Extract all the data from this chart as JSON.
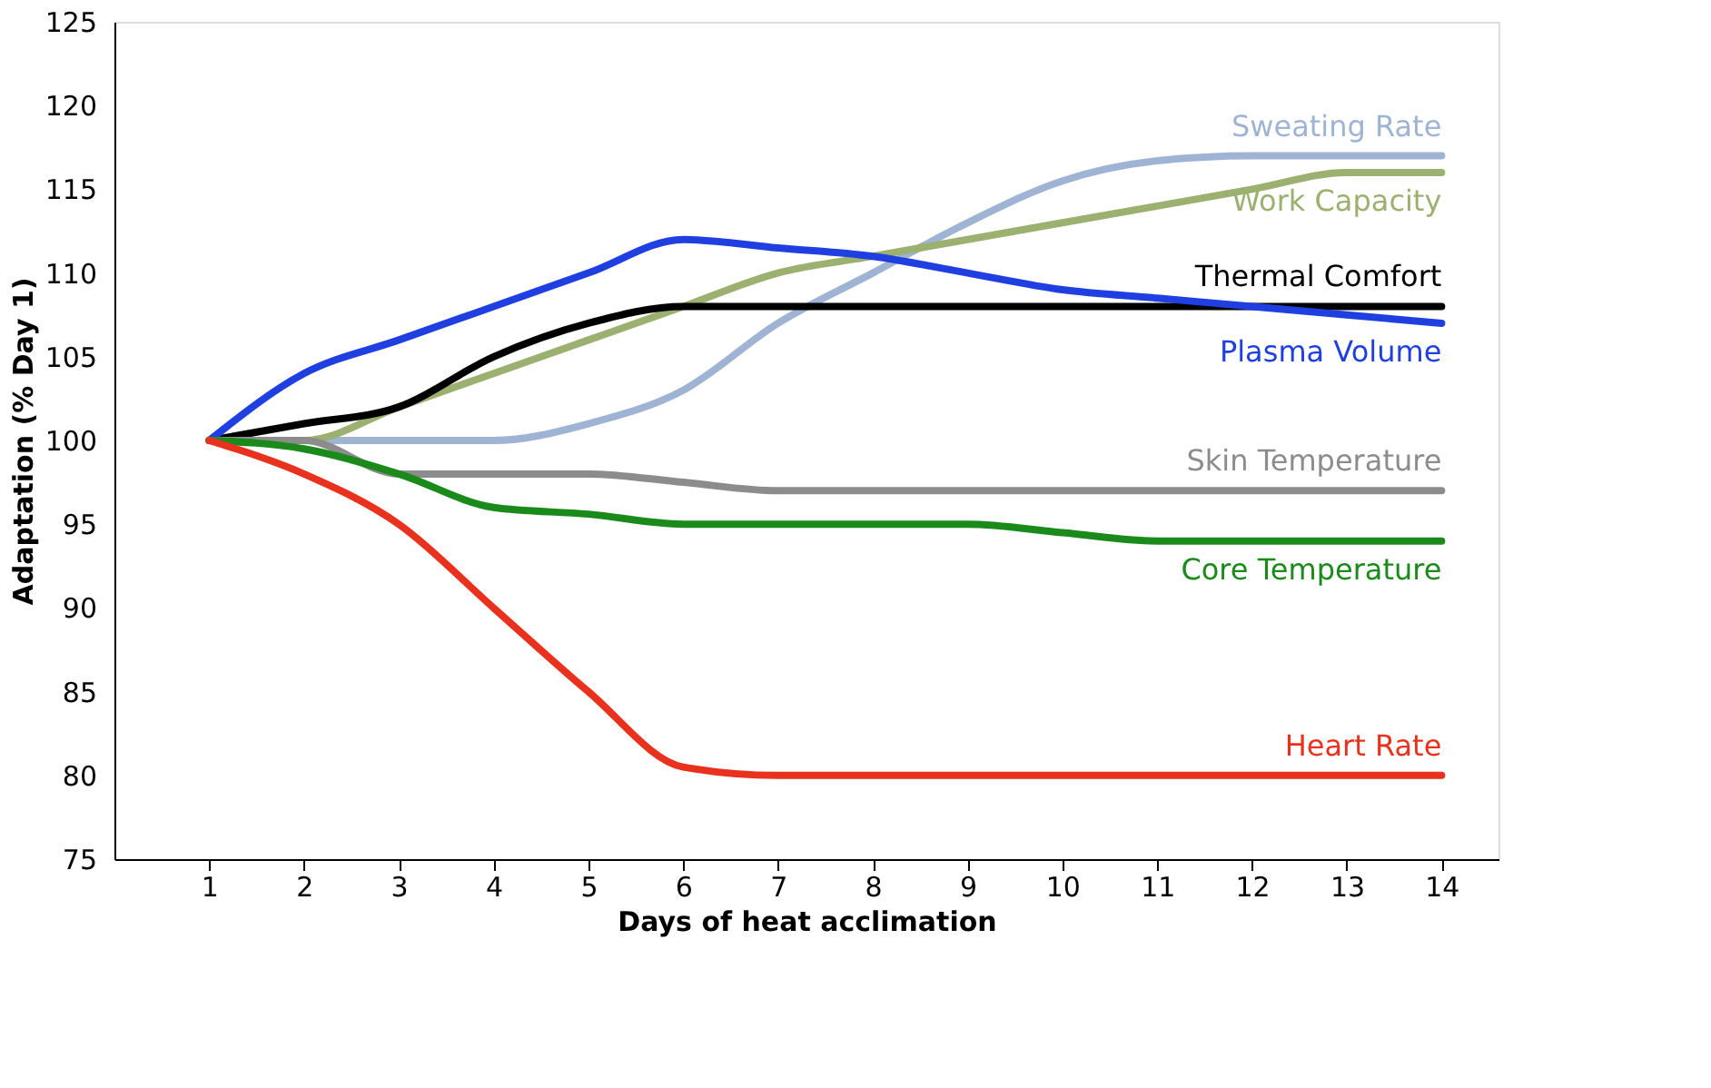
{
  "chart_data": {
    "type": "line",
    "xlabel": "Days of heat acclimation",
    "ylabel": "Adaptation (% Day 1)",
    "x": [
      1,
      2,
      3,
      4,
      5,
      6,
      7,
      8,
      9,
      10,
      11,
      12,
      13,
      14
    ],
    "xlim": [
      0,
      14.6
    ],
    "xticks": [
      1,
      2,
      3,
      4,
      5,
      6,
      7,
      8,
      9,
      10,
      11,
      12,
      13,
      14
    ],
    "ylim": [
      75,
      125
    ],
    "yticks": [
      75,
      80,
      85,
      90,
      95,
      100,
      105,
      110,
      115,
      120,
      125
    ],
    "grid": false,
    "legend": false,
    "marker": "none",
    "line_style": "solid",
    "series": [
      {
        "name": "Sweating Rate",
        "color": "#9fb4d4",
        "values": [
          100,
          100,
          100,
          100,
          101,
          103,
          107,
          110,
          113,
          115.5,
          116.7,
          117,
          117,
          117
        ]
      },
      {
        "name": "Work Capacity",
        "color": "#9cb070",
        "values": [
          100,
          100,
          102,
          104,
          106,
          108,
          110,
          111,
          112,
          113,
          114,
          115,
          116,
          116
        ]
      },
      {
        "name": "Thermal Comfort",
        "color": "#000000",
        "values": [
          100,
          101,
          102,
          105,
          107,
          108,
          108,
          108,
          108,
          108,
          108,
          108,
          108,
          108
        ]
      },
      {
        "name": "Plasma Volume",
        "color": "#1f3fe0",
        "values": [
          100,
          104,
          106,
          108,
          110,
          112,
          111.5,
          111,
          110,
          109,
          108.5,
          108,
          107.5,
          107
        ]
      },
      {
        "name": "Skin Temperature",
        "color": "#8c8c8c",
        "values": [
          100,
          100,
          98,
          98,
          98,
          97.5,
          97,
          97,
          97,
          97,
          97,
          97,
          97,
          97
        ]
      },
      {
        "name": "Core Temperature",
        "color": "#1a8a1a",
        "values": [
          100,
          99.5,
          98,
          96,
          95.6,
          95,
          95,
          95,
          95,
          94.5,
          94,
          94,
          94,
          94
        ]
      },
      {
        "name": "Heart Rate",
        "color": "#e8321e",
        "values": [
          100,
          98,
          95,
          90,
          85,
          80.5,
          80,
          80,
          80,
          80,
          80,
          80,
          80,
          80
        ]
      }
    ]
  }
}
